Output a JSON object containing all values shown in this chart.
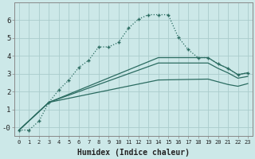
{
  "xlabel": "Humidex (Indice chaleur)",
  "background_color": "#cce8e8",
  "grid_color": "#aacccc",
  "line_color": "#2a6b60",
  "xlim": [
    -0.5,
    23.5
  ],
  "ylim": [
    -0.5,
    7.0
  ],
  "yticks": [
    0,
    1,
    2,
    3,
    4,
    5,
    6
  ],
  "ytick_labels": [
    "-0",
    "1",
    "2",
    "3",
    "4",
    "5",
    "6"
  ],
  "xticks": [
    0,
    1,
    2,
    3,
    4,
    5,
    6,
    7,
    8,
    9,
    10,
    11,
    12,
    13,
    14,
    15,
    16,
    17,
    18,
    19,
    20,
    21,
    22,
    23
  ],
  "series": {
    "curve1": {
      "x": [
        0,
        1,
        2,
        3,
        4,
        5,
        6,
        7,
        8,
        9,
        10,
        11,
        12,
        13,
        14,
        15,
        16,
        17,
        18,
        19,
        20,
        21,
        22,
        23
      ],
      "y": [
        -0.15,
        -0.15,
        0.35,
        1.4,
        2.1,
        2.65,
        3.35,
        3.75,
        4.5,
        4.5,
        4.75,
        5.55,
        6.05,
        6.3,
        6.3,
        6.3,
        5.05,
        4.35,
        3.9,
        3.9,
        3.55,
        3.3,
        2.95,
        3.05
      ]
    },
    "line_upper": {
      "x": [
        0,
        3,
        14,
        19,
        20,
        21,
        22,
        23
      ],
      "y": [
        -0.15,
        1.4,
        3.9,
        3.9,
        3.55,
        3.3,
        2.95,
        3.05
      ]
    },
    "line_mid": {
      "x": [
        0,
        3,
        14,
        19,
        20,
        21,
        22,
        23
      ],
      "y": [
        -0.15,
        1.4,
        3.6,
        3.6,
        3.3,
        3.05,
        2.75,
        2.85
      ]
    },
    "line_lower": {
      "x": [
        0,
        3,
        14,
        19,
        20,
        21,
        22,
        23
      ],
      "y": [
        -0.15,
        1.4,
        2.65,
        2.7,
        2.55,
        2.4,
        2.3,
        2.45
      ]
    }
  }
}
